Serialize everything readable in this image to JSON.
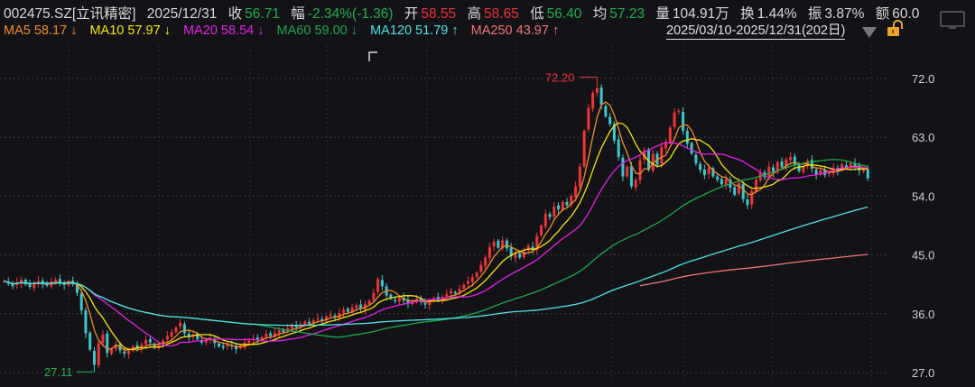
{
  "header": {
    "symbol": "002475.SZ[立讯精密]",
    "date": "2025/12/31",
    "close_label": "收",
    "close": "56.71",
    "change_label": "幅",
    "change": "-2.34%(-1.36)",
    "open_label": "开",
    "open": "58.55",
    "high_label": "高",
    "high": "58.65",
    "low_label": "低",
    "low": "56.40",
    "avg_label": "均",
    "avg": "57.23",
    "volume_label": "量",
    "volume": "104.91万",
    "turnover_label": "换",
    "turnover": "1.44%",
    "amplitude_label": "振",
    "amplitude": "3.87%",
    "amount_label": "额",
    "amount": "60.0"
  },
  "ma_legend": [
    {
      "name": "MA5",
      "value": "58.17",
      "arrow": "↓",
      "color": "#f08a2c"
    },
    {
      "name": "MA10",
      "value": "57.97",
      "arrow": "↓",
      "color": "#f5e20a"
    },
    {
      "name": "MA20",
      "value": "58.54",
      "arrow": "↓",
      "color": "#e41fe4"
    },
    {
      "name": "MA60",
      "value": "59.00",
      "arrow": "↓",
      "color": "#1ba84a"
    },
    {
      "name": "MA120",
      "value": "51.79",
      "arrow": "↑",
      "color": "#4fe0e8"
    },
    {
      "name": "MA250",
      "value": "43.97",
      "arrow": "↑",
      "color": "#f07575"
    }
  ],
  "date_range": "2025/03/10-2025/12/31(202日)",
  "colors": {
    "up": "#ee3535",
    "down": "#3cc6cc",
    "background": "#131317"
  },
  "chart_data": {
    "type": "candlestick",
    "ylim": [
      27.0,
      72.0
    ],
    "yticks": [
      "72.0",
      "63.0",
      "54.0",
      "45.0",
      "36.0",
      "27.0"
    ],
    "grid": true,
    "max_annotation": {
      "label": "72.20",
      "value": 72.2,
      "index": 138
    },
    "min_annotation": {
      "label": "27.11",
      "value": 27.11,
      "index": 21
    },
    "close": [
      41.0,
      40.6,
      40.2,
      40.8,
      41.2,
      40.5,
      40.1,
      40.7,
      41.0,
      40.6,
      40.3,
      40.9,
      41.2,
      40.8,
      40.4,
      41.0,
      40.5,
      39.2,
      36.5,
      33.0,
      30.5,
      28.2,
      31.5,
      32.8,
      30.0,
      30.6,
      31.2,
      30.4,
      29.9,
      30.3,
      31.0,
      30.6,
      31.3,
      32.0,
      31.6,
      30.8,
      31.2,
      31.9,
      32.6,
      33.2,
      33.9,
      34.6,
      33.0,
      32.4,
      32.8,
      32.1,
      31.6,
      31.9,
      32.3,
      31.5,
      31.0,
      30.8,
      31.3,
      31.1,
      30.6,
      31.0,
      31.6,
      31.9,
      32.2,
      32.0,
      32.4,
      32.9,
      32.6,
      33.1,
      33.5,
      33.2,
      33.8,
      34.2,
      33.9,
      34.4,
      34.8,
      34.5,
      35.0,
      35.3,
      35.0,
      35.6,
      35.9,
      35.5,
      36.1,
      36.6,
      36.3,
      36.9,
      37.3,
      36.8,
      37.5,
      38.0,
      39.2,
      41.3,
      40.2,
      38.8,
      38.3,
      37.9,
      38.4,
      38.0,
      37.6,
      37.9,
      38.3,
      37.8,
      37.4,
      37.9,
      38.4,
      38.1,
      38.6,
      39.0,
      39.5,
      39.1,
      39.8,
      40.4,
      41.0,
      41.6,
      42.3,
      43.5,
      44.6,
      46.2,
      47.0,
      46.1,
      47.2,
      46.0,
      44.8,
      45.3,
      44.6,
      45.5,
      46.4,
      45.8,
      47.9,
      49.5,
      51.3,
      50.8,
      52.4,
      52.0,
      53.1,
      52.6,
      54.0,
      55.5,
      58.5,
      64.0,
      67.5,
      69.8,
      70.5,
      68.0,
      66.2,
      65.0,
      62.5,
      60.0,
      57.0,
      58.5,
      55.5,
      56.5,
      59.5,
      61.0,
      58.0,
      60.5,
      58.8,
      61.5,
      62.3,
      64.5,
      66.8,
      67.0,
      64.0,
      62.0,
      60.5,
      59.0,
      58.0,
      57.2,
      58.4,
      57.0,
      56.5,
      55.8,
      56.6,
      55.3,
      54.2,
      56.0,
      53.5,
      52.6,
      54.8,
      56.5,
      57.6,
      56.9,
      58.5,
      57.6,
      59.2,
      58.4,
      59.6,
      60.0,
      58.8,
      57.8,
      58.6,
      59.4,
      58.2,
      57.3,
      58.0,
      57.2,
      57.6,
      58.3,
      57.9,
      58.9,
      58.4,
      59.0,
      58.5,
      57.9,
      58.1,
      56.71
    ]
  }
}
